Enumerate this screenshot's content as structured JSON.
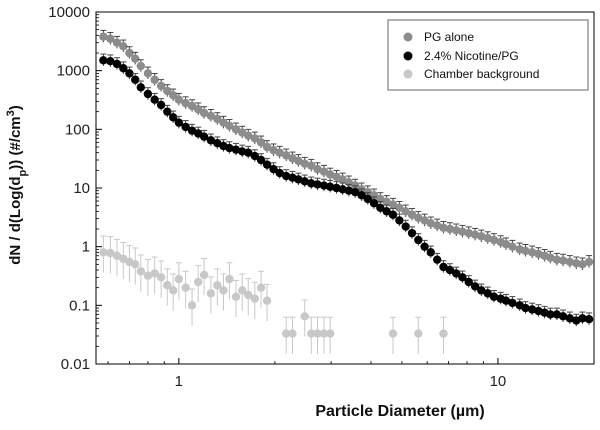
{
  "chart_data": {
    "type": "scatter",
    "title": "",
    "xlabel_main": "Particle Diameter (",
    "xlabel_unit": "µm",
    "xlabel_close": ")",
    "ylabel_parts": {
      "pre": "dN / d(Log(d",
      "sub": "p",
      "mid": ")) (#/cm",
      "sup": "3",
      "post": ")"
    },
    "x_scale": "log",
    "y_scale": "log",
    "xlim": [
      0.55,
      20
    ],
    "ylim": [
      0.01,
      10000
    ],
    "x_ticks": [
      1,
      10
    ],
    "x_tick_labels": [
      "1",
      "10"
    ],
    "y_ticks": [
      0.01,
      0.1,
      1,
      10,
      100,
      1000,
      10000
    ],
    "y_tick_labels": [
      "0.01",
      "0.1",
      "1",
      "10",
      "100",
      "1000",
      "10000"
    ],
    "grid": false,
    "legend_position": "top-right",
    "series": [
      {
        "name": "PG alone",
        "color": "#8c8c8c",
        "x": [
          0.58,
          0.61,
          0.64,
          0.67,
          0.7,
          0.73,
          0.76,
          0.8,
          0.84,
          0.88,
          0.92,
          0.96,
          1.0,
          1.05,
          1.1,
          1.15,
          1.2,
          1.26,
          1.32,
          1.38,
          1.44,
          1.51,
          1.58,
          1.65,
          1.73,
          1.81,
          1.89,
          1.98,
          2.07,
          2.17,
          2.27,
          2.37,
          2.48,
          2.6,
          2.72,
          2.85,
          2.98,
          3.12,
          3.26,
          3.41,
          3.57,
          3.74,
          3.91,
          4.09,
          4.28,
          4.48,
          4.69,
          4.91,
          5.14,
          5.38,
          5.63,
          5.89,
          6.16,
          6.45,
          6.75,
          7.07,
          7.4,
          7.74,
          8.1,
          8.48,
          8.87,
          9.29,
          9.72,
          10.2,
          10.6,
          11.1,
          11.7,
          12.2,
          12.8,
          13.4,
          14.0,
          14.6,
          15.3,
          16.0,
          16.8,
          17.6,
          18.4,
          19.3
        ],
        "y": [
          3800,
          3500,
          3000,
          2600,
          2000,
          1600,
          1200,
          900,
          700,
          550,
          450,
          380,
          320,
          280,
          250,
          220,
          190,
          170,
          150,
          130,
          115,
          100,
          88,
          78,
          70,
          60,
          50,
          44,
          40,
          36,
          32,
          29,
          26,
          24,
          21,
          19,
          17,
          15.5,
          14,
          12.5,
          11,
          9.5,
          8.5,
          7.5,
          6.5,
          5.8,
          5.2,
          4.6,
          4.0,
          3.5,
          3.1,
          2.8,
          2.5,
          2.3,
          2.1,
          2.0,
          1.9,
          1.8,
          1.7,
          1.6,
          1.5,
          1.4,
          1.3,
          1.2,
          1.1,
          1.0,
          0.9,
          0.85,
          0.8,
          0.75,
          0.7,
          0.65,
          0.6,
          0.58,
          0.55,
          0.52,
          0.5,
          0.55
        ]
      },
      {
        "name": "2.4% Nicotine/PG",
        "color": "#000000",
        "x": [
          0.58,
          0.61,
          0.64,
          0.67,
          0.7,
          0.73,
          0.76,
          0.8,
          0.84,
          0.88,
          0.92,
          0.96,
          1.0,
          1.05,
          1.1,
          1.15,
          1.2,
          1.26,
          1.32,
          1.38,
          1.44,
          1.51,
          1.58,
          1.65,
          1.73,
          1.81,
          1.89,
          1.98,
          2.07,
          2.17,
          2.27,
          2.37,
          2.48,
          2.6,
          2.72,
          2.85,
          2.98,
          3.12,
          3.26,
          3.41,
          3.57,
          3.74,
          3.91,
          4.09,
          4.28,
          4.48,
          4.69,
          4.91,
          5.14,
          5.38,
          5.63,
          5.89,
          6.16,
          6.45,
          6.75,
          7.07,
          7.4,
          7.74,
          8.1,
          8.48,
          8.87,
          9.29,
          9.72,
          10.2,
          10.6,
          11.1,
          11.7,
          12.2,
          12.8,
          13.4,
          14.0,
          14.6,
          15.3,
          16.0,
          16.8,
          17.6,
          18.4,
          19.3
        ],
        "y": [
          1500,
          1450,
          1300,
          1100,
          900,
          700,
          520,
          400,
          320,
          260,
          200,
          160,
          130,
          110,
          95,
          85,
          75,
          65,
          58,
          52,
          48,
          45,
          42,
          40,
          35,
          30,
          25,
          21,
          18,
          16,
          15,
          14,
          13,
          12,
          11.5,
          11,
          10.5,
          10,
          9.5,
          9,
          8.5,
          7.5,
          6.5,
          5.5,
          4.6,
          4.0,
          3.5,
          2.8,
          2.2,
          1.7,
          1.3,
          1.0,
          0.8,
          0.6,
          0.45,
          0.4,
          0.35,
          0.3,
          0.25,
          0.21,
          0.18,
          0.16,
          0.14,
          0.13,
          0.12,
          0.11,
          0.1,
          0.09,
          0.085,
          0.08,
          0.075,
          0.07,
          0.07,
          0.065,
          0.06,
          0.055,
          0.06,
          0.058
        ]
      },
      {
        "name": "Chamber background",
        "color": "#c8c8c8",
        "x": [
          0.58,
          0.61,
          0.64,
          0.67,
          0.7,
          0.73,
          0.76,
          0.8,
          0.84,
          0.88,
          0.92,
          0.96,
          1.0,
          1.05,
          1.1,
          1.15,
          1.2,
          1.26,
          1.32,
          1.38,
          1.44,
          1.51,
          1.58,
          1.65,
          1.73,
          1.81,
          1.89,
          2.17,
          2.27,
          2.48,
          2.6,
          2.72,
          2.85,
          2.98,
          4.69,
          5.63,
          6.75
        ],
        "y": [
          0.8,
          0.78,
          0.7,
          0.62,
          0.55,
          0.5,
          0.38,
          0.32,
          0.35,
          0.3,
          0.22,
          0.18,
          0.28,
          0.2,
          0.1,
          0.25,
          0.33,
          0.16,
          0.22,
          0.18,
          0.28,
          0.14,
          0.18,
          0.15,
          0.13,
          0.2,
          0.12,
          0.033,
          0.033,
          0.065,
          0.033,
          0.033,
          0.033,
          0.033,
          0.033,
          0.033,
          0.033
        ]
      }
    ]
  }
}
